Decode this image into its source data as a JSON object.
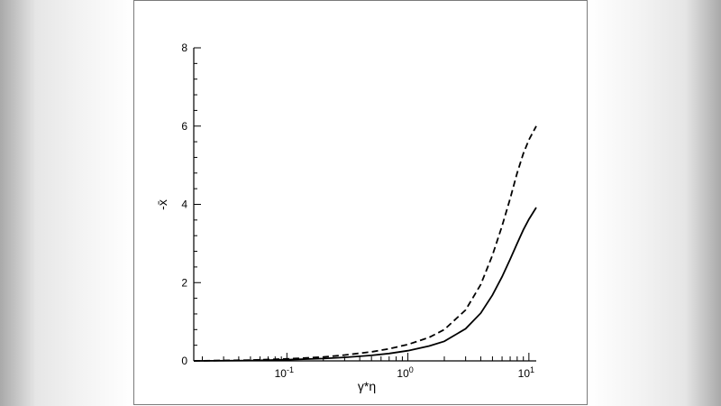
{
  "chart_data": {
    "type": "line",
    "xscale": "log",
    "xlim": [
      0.017,
      11.5
    ],
    "ylim": [
      0,
      8
    ],
    "xlabel": "γ*η",
    "ylabel": "-x̄",
    "grid": false,
    "y_ticks": [
      {
        "value": 0,
        "label": "0"
      },
      {
        "value": 2,
        "label": "2"
      },
      {
        "value": 4,
        "label": "4"
      },
      {
        "value": 6,
        "label": "6"
      },
      {
        "value": 8,
        "label": "8"
      }
    ],
    "x_ticks": [
      {
        "value": 0.1,
        "base": "10",
        "exp": "-1"
      },
      {
        "value": 1,
        "base": "10",
        "exp": "0"
      },
      {
        "value": 10,
        "base": "10",
        "exp": "1"
      }
    ],
    "series": [
      {
        "style": "solid",
        "x": [
          0.017,
          0.05,
          0.1,
          0.2,
          0.3,
          0.5,
          0.7,
          1.0,
          1.5,
          2.0,
          3.0,
          4.0,
          5.0,
          6.0,
          7.0,
          8.0,
          9.0,
          10.0,
          11.5
        ],
        "y": [
          0.0,
          0.01,
          0.03,
          0.06,
          0.09,
          0.14,
          0.19,
          0.26,
          0.38,
          0.5,
          0.82,
          1.22,
          1.68,
          2.15,
          2.6,
          3.0,
          3.35,
          3.62,
          3.92
        ]
      },
      {
        "style": "dashed",
        "x": [
          0.017,
          0.05,
          0.1,
          0.2,
          0.3,
          0.5,
          0.7,
          1.0,
          1.5,
          2.0,
          3.0,
          4.0,
          5.0,
          6.0,
          7.0,
          8.0,
          9.0,
          10.0,
          11.5
        ],
        "y": [
          0.0,
          0.02,
          0.05,
          0.1,
          0.15,
          0.23,
          0.31,
          0.42,
          0.6,
          0.8,
          1.3,
          1.95,
          2.7,
          3.45,
          4.15,
          4.8,
          5.3,
          5.65,
          6.0
        ]
      }
    ]
  }
}
